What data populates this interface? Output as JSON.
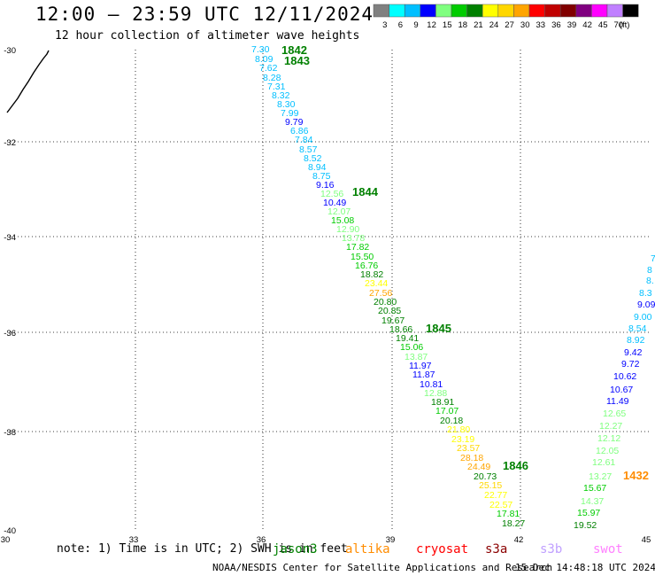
{
  "header": {
    "title": "12:00 – 23:59 UTC 12/11/2024",
    "subtitle": "12 hour collection of altimeter wave heights"
  },
  "legend": {
    "unit": "(ft)",
    "bins": [
      {
        "label": "3",
        "color": "#808080"
      },
      {
        "label": "6",
        "color": "#00ffff"
      },
      {
        "label": "9",
        "color": "#00bfff"
      },
      {
        "label": "12",
        "color": "#0000ff"
      },
      {
        "label": "15",
        "color": "#7fff7f"
      },
      {
        "label": "18",
        "color": "#00cc00"
      },
      {
        "label": "21",
        "color": "#008000"
      },
      {
        "label": "24",
        "color": "#ffff00"
      },
      {
        "label": "27",
        "color": "#ffd700"
      },
      {
        "label": "30",
        "color": "#ffa500"
      },
      {
        "label": "33",
        "color": "#ff0000"
      },
      {
        "label": "36",
        "color": "#c00000"
      },
      {
        "label": "39",
        "color": "#800000"
      },
      {
        "label": "42",
        "color": "#800080"
      },
      {
        "label": "45",
        "color": "#ff00ff"
      },
      {
        "label": "70",
        "color": "#c080ff"
      },
      {
        "label": "",
        "color": "#000000"
      }
    ]
  },
  "axes": {
    "x_ticks": [
      "30",
      "33",
      "36",
      "39",
      "42",
      "45"
    ],
    "y_ticks": [
      "-30",
      "-32",
      "-34",
      "-36",
      "-38",
      "-40"
    ]
  },
  "passes": [
    {
      "label": "1842",
      "color": "#008000"
    },
    {
      "label": "1843",
      "color": "#008000"
    },
    {
      "label": "1844",
      "color": "#008000"
    },
    {
      "label": "1845",
      "color": "#008000"
    },
    {
      "label": "1846",
      "color": "#008000"
    },
    {
      "label": "1432",
      "color": "#ff8c00"
    }
  ],
  "track1": [
    {
      "v": "7.30",
      "c": "#00bfff"
    },
    {
      "v": "8.09",
      "c": "#00bfff"
    },
    {
      "v": "7.62",
      "c": "#00bfff"
    },
    {
      "v": "8.28",
      "c": "#00bfff"
    },
    {
      "v": "7.31",
      "c": "#00bfff"
    },
    {
      "v": "8.32",
      "c": "#00bfff"
    },
    {
      "v": "8.30",
      "c": "#00bfff"
    },
    {
      "v": "7.99",
      "c": "#00bfff"
    },
    {
      "v": "9.79",
      "c": "#0000ff"
    },
    {
      "v": "6.86",
      "c": "#00bfff"
    },
    {
      "v": "7.84",
      "c": "#00bfff"
    },
    {
      "v": "8.57",
      "c": "#00bfff"
    },
    {
      "v": "8.52",
      "c": "#00bfff"
    },
    {
      "v": "8.94",
      "c": "#00bfff"
    },
    {
      "v": "8.75",
      "c": "#00bfff"
    },
    {
      "v": "9.16",
      "c": "#0000ff"
    },
    {
      "v": "12.56",
      "c": "#7fff7f"
    },
    {
      "v": "10.49",
      "c": "#0000ff"
    },
    {
      "v": "12.07",
      "c": "#7fff7f"
    },
    {
      "v": "15.08",
      "c": "#00cc00"
    },
    {
      "v": "12.90",
      "c": "#7fff7f"
    },
    {
      "v": "13.78",
      "c": "#7fff7f"
    },
    {
      "v": "17.82",
      "c": "#00cc00"
    },
    {
      "v": "15.50",
      "c": "#00cc00"
    },
    {
      "v": "16.76",
      "c": "#00cc00"
    },
    {
      "v": "18.82",
      "c": "#008000"
    },
    {
      "v": "23.44",
      "c": "#ffff00"
    },
    {
      "v": "27.56",
      "c": "#ffa500"
    },
    {
      "v": "20.80",
      "c": "#008000"
    },
    {
      "v": "20.85",
      "c": "#008000"
    },
    {
      "v": "19.67",
      "c": "#008000"
    },
    {
      "v": "18.66",
      "c": "#008000"
    },
    {
      "v": "19.41",
      "c": "#008000"
    },
    {
      "v": "15.06",
      "c": "#00cc00"
    },
    {
      "v": "13.87",
      "c": "#7fff7f"
    },
    {
      "v": "11.97",
      "c": "#0000ff"
    },
    {
      "v": "11.87",
      "c": "#0000ff"
    },
    {
      "v": "10.81",
      "c": "#0000ff"
    },
    {
      "v": "12.88",
      "c": "#7fff7f"
    },
    {
      "v": "18.91",
      "c": "#008000"
    },
    {
      "v": "17.07",
      "c": "#00cc00"
    },
    {
      "v": "20.18",
      "c": "#008000"
    },
    {
      "v": "21.80",
      "c": "#ffff00"
    },
    {
      "v": "23.19",
      "c": "#ffff00"
    },
    {
      "v": "23.57",
      "c": "#ffd700"
    },
    {
      "v": "28.18",
      "c": "#ffa500"
    },
    {
      "v": "24.49",
      "c": "#ffa500"
    },
    {
      "v": "20.73",
      "c": "#008000"
    },
    {
      "v": "25.15",
      "c": "#ffd700"
    },
    {
      "v": "22.77",
      "c": "#ffff00"
    },
    {
      "v": "22.57",
      "c": "#ffff00"
    },
    {
      "v": "17.81",
      "c": "#00cc00"
    },
    {
      "v": "18.27",
      "c": "#008000"
    }
  ],
  "track2": [
    {
      "v": "7",
      "c": "#00bfff"
    },
    {
      "v": "8",
      "c": "#00bfff"
    },
    {
      "v": "8.",
      "c": "#00bfff"
    },
    {
      "v": "8.3",
      "c": "#00bfff"
    },
    {
      "v": "9.09",
      "c": "#0000ff"
    },
    {
      "v": "9.00",
      "c": "#00bfff"
    },
    {
      "v": "8.54",
      "c": "#00bfff"
    },
    {
      "v": "8.92",
      "c": "#00bfff"
    },
    {
      "v": "9.42",
      "c": "#0000ff"
    },
    {
      "v": "9.72",
      "c": "#0000ff"
    },
    {
      "v": "10.62",
      "c": "#0000ff"
    },
    {
      "v": "10.67",
      "c": "#0000ff"
    },
    {
      "v": "11.49",
      "c": "#0000ff"
    },
    {
      "v": "12.65",
      "c": "#7fff7f"
    },
    {
      "v": "12.27",
      "c": "#7fff7f"
    },
    {
      "v": "12.12",
      "c": "#7fff7f"
    },
    {
      "v": "12.05",
      "c": "#7fff7f"
    },
    {
      "v": "12.61",
      "c": "#7fff7f"
    },
    {
      "v": "13.27",
      "c": "#7fff7f"
    },
    {
      "v": "15.67",
      "c": "#00cc00"
    },
    {
      "v": "14.37",
      "c": "#7fff7f"
    },
    {
      "v": "15.97",
      "c": "#00cc00"
    },
    {
      "v": "19.52",
      "c": "#008000"
    }
  ],
  "footer": {
    "note": "note: 1) Time is in UTC; 2) SWH is in feet",
    "satellites": [
      {
        "name": "jason3",
        "color": "#008000"
      },
      {
        "name": "altika",
        "color": "#ff8c00"
      },
      {
        "name": "cryosat",
        "color": "#ff0000"
      },
      {
        "name": "s3a",
        "color": "#8b0000"
      },
      {
        "name": "s3b",
        "color": "#c0a0ff"
      },
      {
        "name": "swot",
        "color": "#ff80ff"
      }
    ],
    "credit": "NOAA/NESDIS Center for Satellite Applications and Research",
    "timestamp": "15 Dec 14:48:18 UTC 2024"
  }
}
